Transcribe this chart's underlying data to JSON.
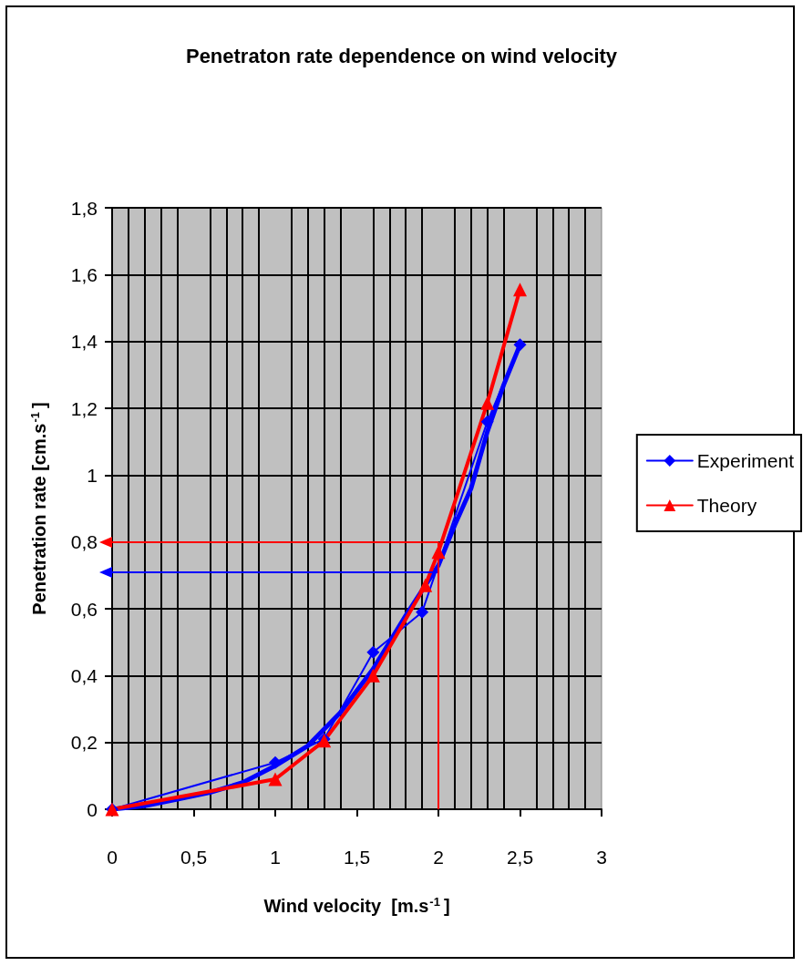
{
  "chart_data": {
    "type": "line",
    "title": "Penetraton rate dependence on wind velocity",
    "xlabel": "Wind velocity  [m.s$^{-1}$]",
    "ylabel": "Penetration rate [cm.s$^{-1}$]",
    "series": [
      {
        "name": "Experiment",
        "color": "#0000ff",
        "marker": "diamond",
        "x": [
          0,
          1,
          1.3,
          1.6,
          1.9,
          2.3,
          2.5
        ],
        "values": [
          0,
          0.14,
          0.21,
          0.47,
          0.59,
          1.16,
          1.39
        ]
      },
      {
        "name": "Theory",
        "color": "#ff0000",
        "marker": "triangle",
        "x": [
          0,
          1,
          1.3,
          1.6,
          1.92,
          2,
          2.3,
          2.5
        ],
        "values": [
          0,
          0.09,
          0.205,
          0.4,
          0.67,
          0.77,
          1.216,
          1.555
        ]
      },
      {
        "color": "#0000ff",
        "marker": "none",
        "x": [
          0,
          0.2,
          0.4,
          0.6,
          0.8,
          1,
          1.2,
          1.4,
          1.6,
          1.8,
          2,
          2.1,
          2.2,
          2.3,
          2.4,
          2.5
        ],
        "values": [
          0,
          0.01,
          0.03,
          0.05,
          0.08,
          0.13,
          0.19,
          0.29,
          0.42,
          0.58,
          0.73,
          0.85,
          0.96,
          1.13,
          1.27,
          1.39
        ]
      }
    ],
    "xlim": [
      0,
      3
    ],
    "xticks": [
      0,
      {
        "value": 0.5,
        "label": "0,5"
      },
      1,
      {
        "value": 1.5,
        "label": "1,5"
      },
      2,
      {
        "value": 2.5,
        "label": "2,5"
      },
      3
    ],
    "ylim": [
      0,
      1.8
    ],
    "yticks": [
      0,
      {
        "value": 0.2,
        "label": "0,2"
      },
      {
        "value": 0.4,
        "label": "0,4"
      },
      {
        "value": 0.6,
        "label": "0,6"
      },
      {
        "value": 0.8,
        "label": "0,8"
      },
      1,
      {
        "value": 1.2,
        "label": "1,2"
      },
      {
        "value": 1.4,
        "label": "1,4"
      },
      {
        "value": 1.6,
        "label": "1,6"
      },
      {
        "value": 1.8,
        "label": "1,8"
      }
    ],
    "ref_lines": [
      {
        "axis": "y",
        "value": 0.8,
        "color": "#ff0000"
      },
      {
        "axis": "y",
        "value": 0.71,
        "color": "#0000ff"
      },
      {
        "axis": "x",
        "value": 2,
        "color": "#ff0000"
      }
    ],
    "grid": true,
    "legend": "right"
  }
}
